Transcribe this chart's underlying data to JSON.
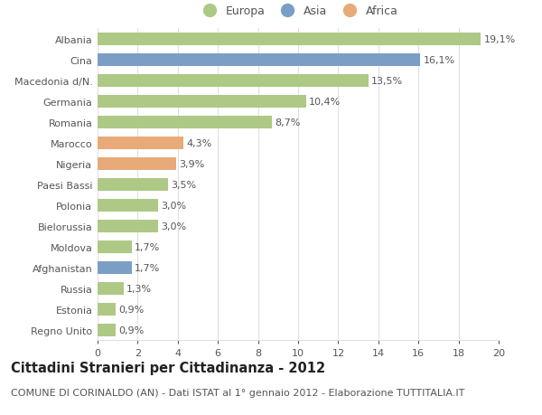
{
  "countries": [
    "Albania",
    "Cina",
    "Macedonia d/N.",
    "Germania",
    "Romania",
    "Marocco",
    "Nigeria",
    "Paesi Bassi",
    "Polonia",
    "Bielorussia",
    "Moldova",
    "Afghanistan",
    "Russia",
    "Estonia",
    "Regno Unito"
  ],
  "values": [
    19.1,
    16.1,
    13.5,
    10.4,
    8.7,
    4.3,
    3.9,
    3.5,
    3.0,
    3.0,
    1.7,
    1.7,
    1.3,
    0.9,
    0.9
  ],
  "labels": [
    "19,1%",
    "16,1%",
    "13,5%",
    "10,4%",
    "8,7%",
    "4,3%",
    "3,9%",
    "3,5%",
    "3,0%",
    "3,0%",
    "1,7%",
    "1,7%",
    "1,3%",
    "0,9%",
    "0,9%"
  ],
  "continents": [
    "Europa",
    "Asia",
    "Europa",
    "Europa",
    "Europa",
    "Africa",
    "Africa",
    "Europa",
    "Europa",
    "Europa",
    "Europa",
    "Asia",
    "Europa",
    "Europa",
    "Europa"
  ],
  "colors": {
    "Europa": "#adc985",
    "Asia": "#7b9ec7",
    "Africa": "#e8aa78"
  },
  "title": "Cittadini Stranieri per Cittadinanza - 2012",
  "subtitle": "COMUNE DI CORINALDO (AN) - Dati ISTAT al 1° gennaio 2012 - Elaborazione TUTTITALIA.IT",
  "xlim": [
    0,
    20
  ],
  "xticks": [
    0,
    2,
    4,
    6,
    8,
    10,
    12,
    14,
    16,
    18,
    20
  ],
  "background_color": "#ffffff",
  "grid_color": "#e0e0e0",
  "label_fontsize": 8,
  "ytick_fontsize": 8,
  "xtick_fontsize": 8,
  "title_fontsize": 10.5,
  "subtitle_fontsize": 8,
  "bar_height": 0.6
}
